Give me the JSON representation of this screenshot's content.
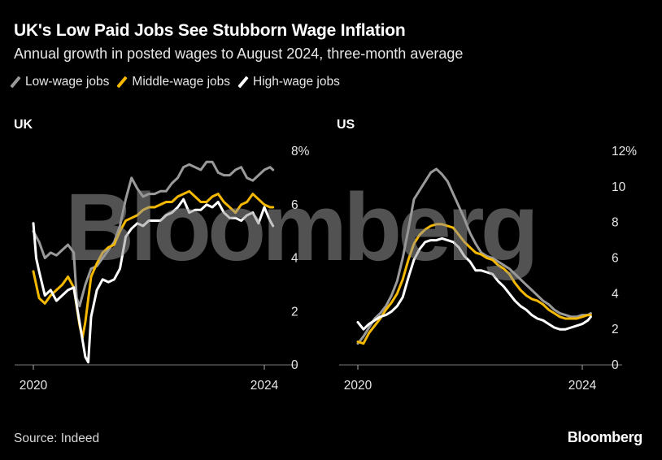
{
  "header": {
    "title": "UK's Low Paid Jobs See Stubborn Wage Inflation",
    "subtitle": "Annual growth in posted wages to August 2024, three-month average"
  },
  "legend": [
    {
      "label": "Low-wage jobs",
      "color": "#9a9a9a"
    },
    {
      "label": "Middle-wage jobs",
      "color": "#f5b800"
    },
    {
      "label": "High-wage jobs",
      "color": "#ffffff"
    }
  ],
  "watermark": "Bloomberg",
  "footer": {
    "source": "Source: Indeed",
    "brand": "Bloomberg"
  },
  "chart_data": [
    {
      "type": "line",
      "panel": "UK",
      "title": "UK",
      "x_ticks": [
        "2020",
        "2024"
      ],
      "x_range": [
        2020.0,
        2024.15
      ],
      "ylim": [
        0,
        8
      ],
      "y_ticks": [
        "8%",
        "6",
        "4",
        "2",
        "0"
      ],
      "series": [
        {
          "name": "Low-wage jobs",
          "color": "#9a9a9a",
          "x": [
            2020.0,
            2020.1,
            2020.2,
            2020.3,
            2020.4,
            2020.5,
            2020.6,
            2020.7,
            2020.75,
            2020.8,
            2020.9,
            2021.0,
            2021.1,
            2021.2,
            2021.3,
            2021.4,
            2021.5,
            2021.6,
            2021.7,
            2021.8,
            2021.9,
            2022.0,
            2022.1,
            2022.2,
            2022.3,
            2022.4,
            2022.5,
            2022.6,
            2022.7,
            2022.8,
            2022.9,
            2023.0,
            2023.1,
            2023.2,
            2023.3,
            2023.4,
            2023.5,
            2023.6,
            2023.7,
            2023.8,
            2023.9,
            2024.0,
            2024.1,
            2024.15
          ],
          "values": [
            5.0,
            4.6,
            4.0,
            4.2,
            4.1,
            4.3,
            4.5,
            4.2,
            2.5,
            2.2,
            3.0,
            3.6,
            3.7,
            4.0,
            4.3,
            4.6,
            5.2,
            6.2,
            7.0,
            6.6,
            6.3,
            6.4,
            6.4,
            6.5,
            6.5,
            6.8,
            7.0,
            7.4,
            7.5,
            7.4,
            7.3,
            7.6,
            7.6,
            7.2,
            7.1,
            7.1,
            7.3,
            7.4,
            7.0,
            6.9,
            7.1,
            7.3,
            7.4,
            7.3
          ]
        },
        {
          "name": "Middle-wage jobs",
          "color": "#f5b800",
          "x": [
            2020.0,
            2020.1,
            2020.2,
            2020.3,
            2020.4,
            2020.5,
            2020.6,
            2020.7,
            2020.8,
            2020.85,
            2020.9,
            2021.0,
            2021.1,
            2021.2,
            2021.3,
            2021.4,
            2021.5,
            2021.6,
            2021.7,
            2021.8,
            2021.9,
            2022.0,
            2022.1,
            2022.2,
            2022.3,
            2022.4,
            2022.5,
            2022.6,
            2022.7,
            2022.8,
            2022.9,
            2023.0,
            2023.1,
            2023.2,
            2023.3,
            2023.4,
            2023.5,
            2023.6,
            2023.7,
            2023.8,
            2023.9,
            2024.0,
            2024.1,
            2024.15
          ],
          "values": [
            3.5,
            2.5,
            2.3,
            2.6,
            2.8,
            3.0,
            3.3,
            2.9,
            1.5,
            1.0,
            1.6,
            3.3,
            3.8,
            4.2,
            4.4,
            4.5,
            5.0,
            5.4,
            5.5,
            5.6,
            5.8,
            5.9,
            5.9,
            6.0,
            6.1,
            6.1,
            6.3,
            6.4,
            6.5,
            6.3,
            6.1,
            6.1,
            6.3,
            6.4,
            6.1,
            5.9,
            5.7,
            6.0,
            6.1,
            6.4,
            6.2,
            6.0,
            5.9,
            5.9
          ]
        },
        {
          "name": "High-wage jobs",
          "color": "#ffffff",
          "x": [
            2020.0,
            2020.05,
            2020.1,
            2020.2,
            2020.3,
            2020.4,
            2020.5,
            2020.6,
            2020.7,
            2020.8,
            2020.9,
            2020.95,
            2021.0,
            2021.1,
            2021.2,
            2021.3,
            2021.4,
            2021.5,
            2021.6,
            2021.7,
            2021.8,
            2021.9,
            2022.0,
            2022.1,
            2022.2,
            2022.3,
            2022.4,
            2022.5,
            2022.6,
            2022.7,
            2022.8,
            2022.9,
            2023.0,
            2023.1,
            2023.2,
            2023.3,
            2023.4,
            2023.5,
            2023.6,
            2023.7,
            2023.8,
            2023.9,
            2024.0,
            2024.1,
            2024.15
          ],
          "values": [
            5.3,
            4.0,
            3.5,
            2.6,
            2.8,
            2.4,
            2.6,
            2.8,
            2.9,
            1.6,
            0.3,
            0.1,
            1.8,
            2.8,
            3.2,
            3.1,
            3.2,
            3.6,
            4.8,
            5.1,
            5.3,
            5.2,
            5.4,
            5.4,
            5.4,
            5.6,
            5.7,
            5.9,
            6.2,
            5.7,
            5.8,
            5.8,
            6.0,
            5.9,
            6.1,
            5.7,
            5.5,
            5.5,
            5.4,
            5.6,
            5.7,
            5.3,
            5.9,
            5.4,
            5.2
          ]
        }
      ]
    },
    {
      "type": "line",
      "panel": "US",
      "title": "US",
      "x_ticks": [
        "2020",
        "2024"
      ],
      "x_range": [
        2020.0,
        2024.15
      ],
      "ylim": [
        0,
        12
      ],
      "y_ticks": [
        "12%",
        "10",
        "8",
        "6",
        "4",
        "2",
        "0"
      ],
      "series": [
        {
          "name": "Low-wage jobs",
          "color": "#9a9a9a",
          "x": [
            2020.0,
            2020.1,
            2020.2,
            2020.3,
            2020.4,
            2020.5,
            2020.6,
            2020.7,
            2020.8,
            2020.9,
            2021.0,
            2021.1,
            2021.2,
            2021.3,
            2021.4,
            2021.5,
            2021.6,
            2021.7,
            2021.8,
            2021.9,
            2022.0,
            2022.1,
            2022.2,
            2022.3,
            2022.4,
            2022.5,
            2022.6,
            2022.7,
            2022.8,
            2022.9,
            2023.0,
            2023.1,
            2023.2,
            2023.3,
            2023.4,
            2023.5,
            2023.6,
            2023.7,
            2023.8,
            2023.9,
            2024.0,
            2024.1,
            2024.15
          ],
          "values": [
            1.2,
            1.6,
            2.1,
            2.6,
            2.9,
            3.3,
            3.9,
            4.7,
            6.0,
            7.6,
            9.3,
            9.8,
            10.3,
            10.8,
            11.0,
            10.7,
            10.3,
            9.6,
            8.9,
            8.2,
            7.4,
            6.8,
            6.3,
            6.1,
            6.0,
            5.8,
            5.6,
            5.4,
            5.1,
            4.8,
            4.5,
            4.2,
            3.9,
            3.6,
            3.4,
            3.1,
            2.9,
            2.8,
            2.7,
            2.7,
            2.8,
            2.8,
            2.9
          ]
        },
        {
          "name": "Middle-wage jobs",
          "color": "#f5b800",
          "x": [
            2020.0,
            2020.1,
            2020.2,
            2020.3,
            2020.4,
            2020.5,
            2020.6,
            2020.7,
            2020.8,
            2020.9,
            2021.0,
            2021.1,
            2021.2,
            2021.3,
            2021.4,
            2021.5,
            2021.6,
            2021.7,
            2021.8,
            2021.9,
            2022.0,
            2022.1,
            2022.2,
            2022.3,
            2022.4,
            2022.5,
            2022.6,
            2022.7,
            2022.8,
            2022.9,
            2023.0,
            2023.1,
            2023.2,
            2023.3,
            2023.4,
            2023.5,
            2023.6,
            2023.7,
            2023.8,
            2023.9,
            2024.0,
            2024.1,
            2024.15
          ],
          "values": [
            1.3,
            1.2,
            1.8,
            2.2,
            2.6,
            3.1,
            3.5,
            4.0,
            4.8,
            5.9,
            6.8,
            7.3,
            7.6,
            7.8,
            7.9,
            7.9,
            7.8,
            7.7,
            7.3,
            6.9,
            6.6,
            6.3,
            6.2,
            6.0,
            5.9,
            5.6,
            5.4,
            5.1,
            4.6,
            4.2,
            3.9,
            3.7,
            3.6,
            3.4,
            3.1,
            2.9,
            2.7,
            2.6,
            2.6,
            2.6,
            2.7,
            2.8,
            2.8
          ]
        },
        {
          "name": "High-wage jobs",
          "color": "#ffffff",
          "x": [
            2020.0,
            2020.1,
            2020.2,
            2020.3,
            2020.4,
            2020.5,
            2020.6,
            2020.7,
            2020.8,
            2020.9,
            2021.0,
            2021.1,
            2021.2,
            2021.3,
            2021.4,
            2021.5,
            2021.6,
            2021.7,
            2021.8,
            2021.9,
            2022.0,
            2022.1,
            2022.2,
            2022.3,
            2022.4,
            2022.5,
            2022.6,
            2022.7,
            2022.8,
            2022.9,
            2023.0,
            2023.1,
            2023.2,
            2023.3,
            2023.4,
            2023.5,
            2023.6,
            2023.7,
            2023.8,
            2023.9,
            2024.0,
            2024.1,
            2024.15
          ],
          "values": [
            2.4,
            2.0,
            2.3,
            2.5,
            2.7,
            2.8,
            3.0,
            3.3,
            3.8,
            4.9,
            5.9,
            6.5,
            6.9,
            7.0,
            7.0,
            7.1,
            7.0,
            6.9,
            6.6,
            6.1,
            5.8,
            5.3,
            5.3,
            5.2,
            5.1,
            4.7,
            4.4,
            4.0,
            3.6,
            3.3,
            3.1,
            2.8,
            2.6,
            2.5,
            2.3,
            2.1,
            2.0,
            2.0,
            2.1,
            2.2,
            2.3,
            2.5,
            2.7
          ]
        }
      ]
    }
  ]
}
